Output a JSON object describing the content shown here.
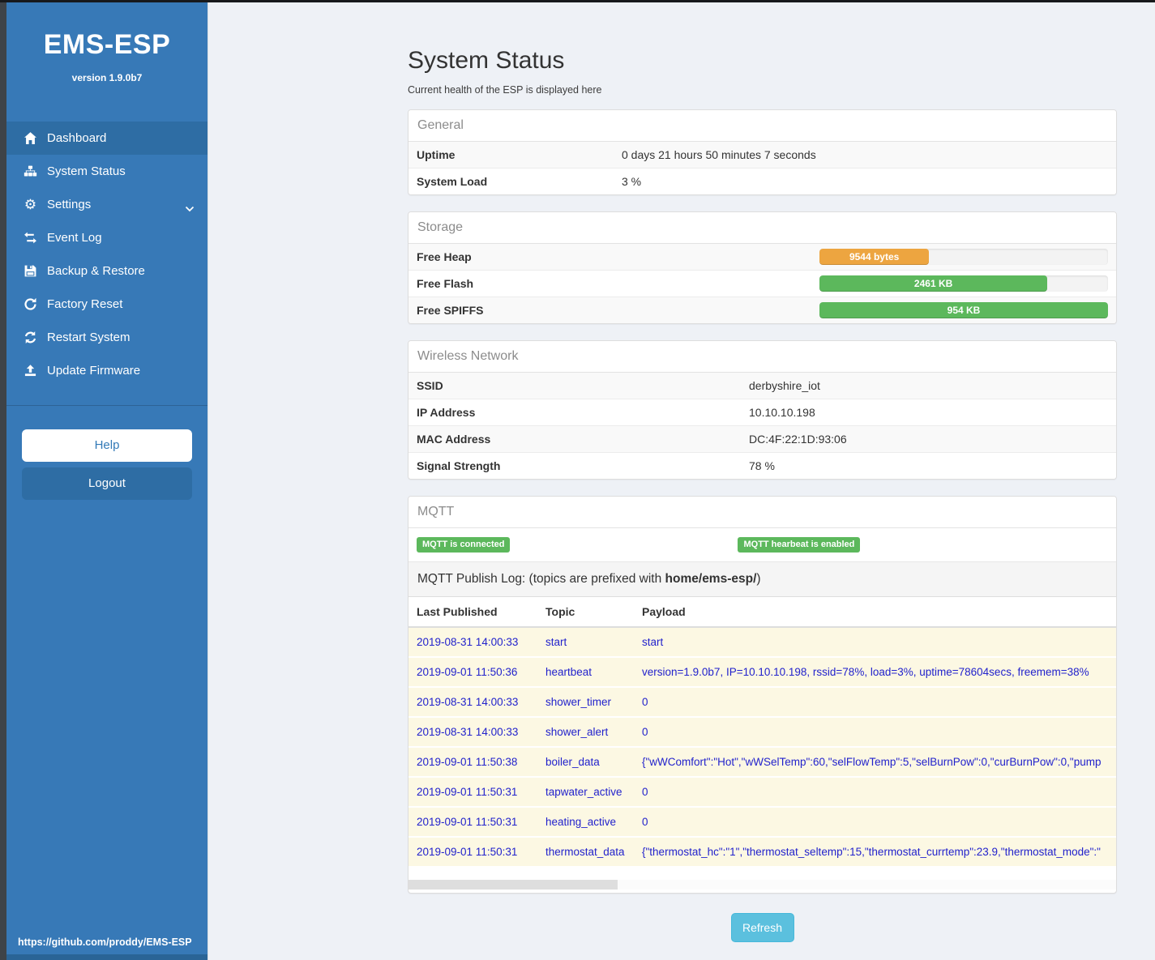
{
  "sidebar": {
    "title": "EMS-ESP",
    "version": "version 1.9.0b7",
    "items": [
      {
        "label": "Dashboard",
        "icon": "home-icon",
        "active": true,
        "chevron": false
      },
      {
        "label": "System Status",
        "icon": "sitemap-icon",
        "active": false,
        "chevron": false
      },
      {
        "label": "Settings",
        "icon": "gear-icon",
        "active": false,
        "chevron": true
      },
      {
        "label": "Event Log",
        "icon": "exchange-icon",
        "active": false,
        "chevron": false
      },
      {
        "label": "Backup & Restore",
        "icon": "save-icon",
        "active": false,
        "chevron": false
      },
      {
        "label": "Factory Reset",
        "icon": "repeat-icon",
        "active": false,
        "chevron": false
      },
      {
        "label": "Restart System",
        "icon": "refresh-icon",
        "active": false,
        "chevron": false
      },
      {
        "label": "Update Firmware",
        "icon": "upload-icon",
        "active": false,
        "chevron": false
      }
    ],
    "help_label": "Help",
    "logout_label": "Logout",
    "footer_link": "https://github.com/proddy/EMS-ESP"
  },
  "main": {
    "title": "System Status",
    "subtitle": "Current health of the ESP is displayed here",
    "refresh_label": "Refresh"
  },
  "general": {
    "title": "General",
    "rows": [
      {
        "label": "Uptime",
        "value": "0 days 21 hours 50 minutes 7 seconds"
      },
      {
        "label": "System Load",
        "value": "3 %"
      }
    ]
  },
  "storage": {
    "title": "Storage",
    "rows": [
      {
        "label": "Free Heap",
        "bar_label": "9544 bytes",
        "percent": 38,
        "color": "#eda540"
      },
      {
        "label": "Free Flash",
        "bar_label": "2461 KB",
        "percent": 79,
        "color": "#5cb85c"
      },
      {
        "label": "Free SPIFFS",
        "bar_label": "954 KB",
        "percent": 100,
        "color": "#5cb85c"
      }
    ]
  },
  "wireless": {
    "title": "Wireless Network",
    "rows": [
      {
        "label": "SSID",
        "value": "derbyshire_iot"
      },
      {
        "label": "IP Address",
        "value": "10.10.10.198"
      },
      {
        "label": "MAC Address",
        "value": "DC:4F:22:1D:93:06"
      },
      {
        "label": "Signal Strength",
        "value": "78 %"
      }
    ]
  },
  "mqtt": {
    "title": "MQTT",
    "badges": [
      "MQTT is connected",
      "MQTT hearbeat is enabled"
    ],
    "log_caption_prefix": "MQTT Publish Log: (topics are prefixed with ",
    "log_caption_bold": "home/ems-esp/",
    "log_caption_suffix": ")",
    "columns": [
      "Last Published",
      "Topic",
      "Payload"
    ],
    "rows": [
      {
        "time": "2019-08-31 14:00:33",
        "topic": "start",
        "payload": "start"
      },
      {
        "time": "2019-09-01 11:50:36",
        "topic": "heartbeat",
        "payload": "version=1.9.0b7, IP=10.10.10.198, rssid=78%, load=3%, uptime=78604secs, freemem=38%"
      },
      {
        "time": "2019-08-31 14:00:33",
        "topic": "shower_timer",
        "payload": "0"
      },
      {
        "time": "2019-08-31 14:00:33",
        "topic": "shower_alert",
        "payload": "0"
      },
      {
        "time": "2019-09-01 11:50:38",
        "topic": "boiler_data",
        "payload": "{\"wWComfort\":\"Hot\",\"wWSelTemp\":60,\"selFlowTemp\":5,\"selBurnPow\":0,\"curBurnPow\":0,\"pump"
      },
      {
        "time": "2019-09-01 11:50:31",
        "topic": "tapwater_active",
        "payload": "0"
      },
      {
        "time": "2019-09-01 11:50:31",
        "topic": "heating_active",
        "payload": "0"
      },
      {
        "time": "2019-09-01 11:50:31",
        "topic": "thermostat_data",
        "payload": "{\"thermostat_hc\":\"1\",\"thermostat_seltemp\":15,\"thermostat_currtemp\":23.9,\"thermostat_mode\":\""
      }
    ]
  },
  "colors": {
    "sidebar": "#3779b7",
    "sidebar_active": "#2e6da4",
    "success_green": "#5cb85c",
    "warning_orange": "#eda540",
    "info_blue": "#5bc0de",
    "log_text_blue": "#2222cc",
    "log_row_bg": "#fcf8e3"
  }
}
